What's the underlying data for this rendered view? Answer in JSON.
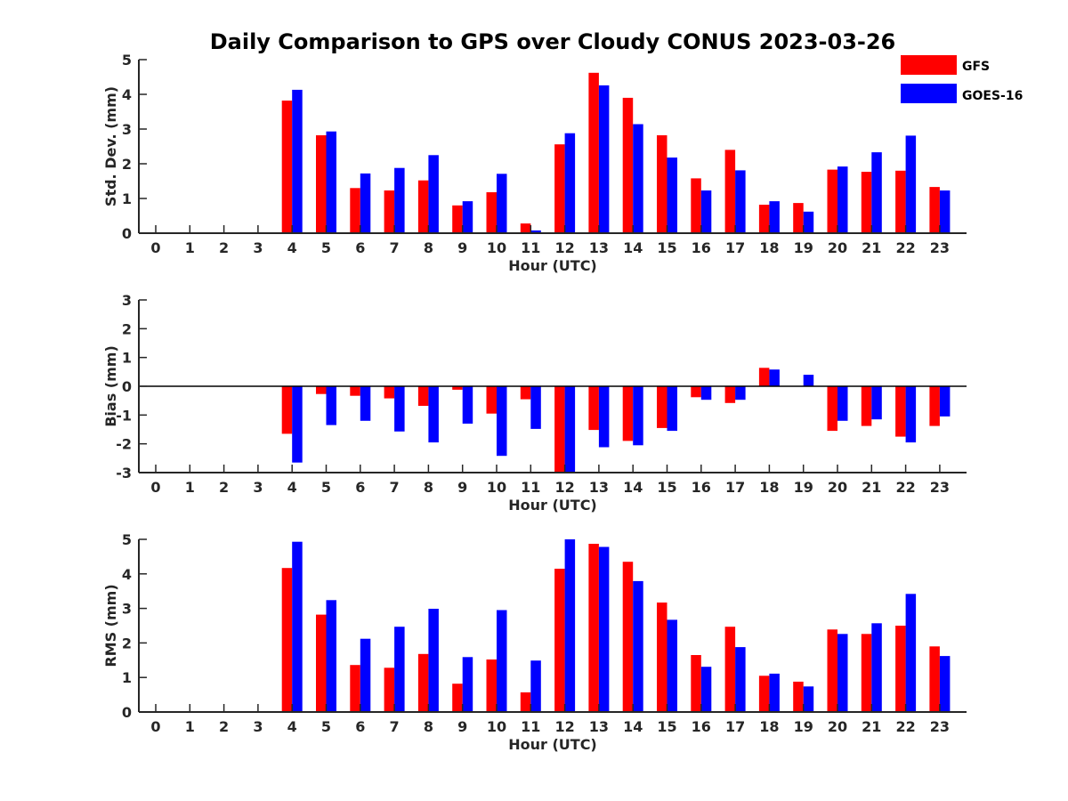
{
  "title": "Daily Comparison to GPS over Cloudy CONUS 2023-03-26",
  "legend": {
    "placement": "top-right",
    "entries": [
      {
        "name": "GFS",
        "color": "#ff0000"
      },
      {
        "name": "GOES-16",
        "color": "#0000ff"
      }
    ]
  },
  "chart_data": [
    {
      "type": "bar",
      "xlabel": "Hour (UTC)",
      "ylabel": "Std. Dev. (mm)",
      "ylim": [
        0,
        5
      ],
      "yticks": [
        0,
        1,
        2,
        3,
        4,
        5
      ],
      "categories": [
        "0",
        "1",
        "2",
        "3",
        "4",
        "5",
        "6",
        "7",
        "8",
        "9",
        "10",
        "11",
        "12",
        "13",
        "14",
        "15",
        "16",
        "17",
        "18",
        "19",
        "20",
        "21",
        "22",
        "23"
      ],
      "series": [
        {
          "name": "GFS",
          "color": "#ff0000",
          "values": [
            null,
            null,
            null,
            null,
            3.82,
            2.82,
            1.3,
            1.23,
            1.52,
            0.8,
            1.18,
            0.28,
            2.56,
            4.62,
            3.9,
            2.82,
            1.58,
            2.4,
            0.82,
            0.87,
            1.83,
            1.77,
            1.8,
            1.33
          ]
        },
        {
          "name": "GOES-16",
          "color": "#0000ff",
          "values": [
            null,
            null,
            null,
            null,
            4.13,
            2.93,
            1.72,
            1.88,
            2.25,
            0.92,
            1.71,
            0.08,
            2.88,
            4.26,
            3.14,
            2.18,
            1.23,
            1.81,
            0.92,
            0.62,
            1.92,
            2.33,
            2.81,
            1.23
          ]
        }
      ]
    },
    {
      "type": "bar",
      "xlabel": "Hour (UTC)",
      "ylabel": "Bias (mm)",
      "ylim": [
        -3,
        3
      ],
      "yticks": [
        -3,
        -2,
        -1,
        0,
        1,
        2,
        3
      ],
      "zero_line": true,
      "categories": [
        "0",
        "1",
        "2",
        "3",
        "4",
        "5",
        "6",
        "7",
        "8",
        "9",
        "10",
        "11",
        "12",
        "13",
        "14",
        "15",
        "16",
        "17",
        "18",
        "19",
        "20",
        "21",
        "22",
        "23"
      ],
      "series": [
        {
          "name": "GFS",
          "color": "#ff0000",
          "values": [
            null,
            null,
            null,
            null,
            -1.65,
            -0.27,
            -0.33,
            -0.42,
            -0.68,
            -0.12,
            -0.95,
            -0.45,
            -3.05,
            -1.52,
            -1.9,
            -1.45,
            -0.38,
            -0.58,
            0.64,
            0.0,
            -1.55,
            -1.38,
            -1.75,
            -1.38
          ]
        },
        {
          "name": "GOES-16",
          "color": "#0000ff",
          "values": [
            null,
            null,
            null,
            null,
            -2.65,
            -1.35,
            -1.2,
            -1.57,
            -1.95,
            -1.3,
            -2.42,
            -1.48,
            -3.05,
            -2.12,
            -2.05,
            -1.55,
            -0.47,
            -0.47,
            0.58,
            0.4,
            -1.2,
            -1.15,
            -1.95,
            -1.05
          ]
        }
      ]
    },
    {
      "type": "bar",
      "xlabel": "Hour (UTC)",
      "ylabel": "RMS (mm)",
      "ylim": [
        0,
        5
      ],
      "yticks": [
        0,
        1,
        2,
        3,
        4,
        5
      ],
      "categories": [
        "0",
        "1",
        "2",
        "3",
        "4",
        "5",
        "6",
        "7",
        "8",
        "9",
        "10",
        "11",
        "12",
        "13",
        "14",
        "15",
        "16",
        "17",
        "18",
        "19",
        "20",
        "21",
        "22",
        "23"
      ],
      "series": [
        {
          "name": "GFS",
          "color": "#ff0000",
          "values": [
            null,
            null,
            null,
            null,
            4.17,
            2.82,
            1.36,
            1.28,
            1.68,
            0.82,
            1.52,
            0.57,
            4.15,
            4.87,
            4.35,
            3.17,
            1.65,
            2.47,
            1.05,
            0.88,
            2.39,
            2.26,
            2.5,
            1.9
          ]
        },
        {
          "name": "GOES-16",
          "color": "#0000ff",
          "values": [
            null,
            null,
            null,
            null,
            4.93,
            3.24,
            2.12,
            2.47,
            2.99,
            1.59,
            2.95,
            1.49,
            5.0,
            4.78,
            3.79,
            2.67,
            1.31,
            1.88,
            1.11,
            0.74,
            2.26,
            2.57,
            3.42,
            1.62
          ]
        }
      ]
    }
  ]
}
